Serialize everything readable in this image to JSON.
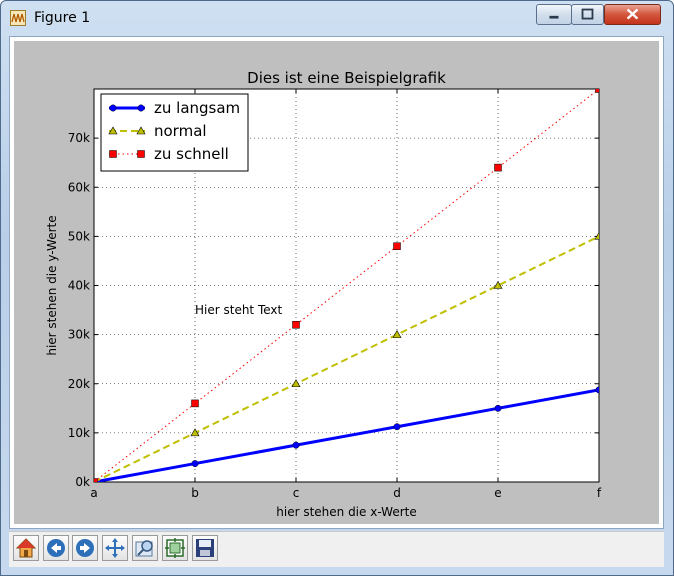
{
  "window": {
    "title": "Figure 1"
  },
  "toolbar": {
    "buttons": [
      {
        "name": "home-icon"
      },
      {
        "name": "back-icon"
      },
      {
        "name": "forward-icon"
      },
      {
        "name": "pan-icon"
      },
      {
        "name": "zoom-icon"
      },
      {
        "name": "subplots-icon"
      },
      {
        "name": "save-icon"
      }
    ]
  },
  "chart_data": {
    "type": "line",
    "title": "Dies ist eine Beispielgrafik",
    "xlabel": "hier stehen die x-Werte",
    "ylabel": "hier stehen die y-Werte",
    "categories": [
      "a",
      "b",
      "c",
      "d",
      "e",
      "f"
    ],
    "y_ticks": [
      "0k",
      "10k",
      "20k",
      "30k",
      "40k",
      "50k",
      "60k",
      "70k"
    ],
    "y_tick_values": [
      0,
      10000,
      20000,
      30000,
      40000,
      50000,
      60000,
      70000
    ],
    "ylim": [
      0,
      80000
    ],
    "grid": true,
    "legend_position": "top-left",
    "annotation": {
      "text": "Hier steht Text",
      "x": "b",
      "y": 35000
    },
    "series": [
      {
        "name": "zu langsam",
        "color": "#0000ff",
        "style": "solid",
        "marker": "circle",
        "values": [
          0,
          3750,
          7500,
          11250,
          15000,
          18750
        ]
      },
      {
        "name": "normal",
        "color": "#bfbf00",
        "style": "dashed",
        "marker": "triangle",
        "values": [
          0,
          10000,
          20000,
          30000,
          40000,
          50000
        ]
      },
      {
        "name": "zu schnell",
        "color": "#ff0000",
        "style": "dotted",
        "marker": "square",
        "values": [
          0,
          16000,
          32000,
          48000,
          64000,
          80000
        ]
      }
    ]
  }
}
